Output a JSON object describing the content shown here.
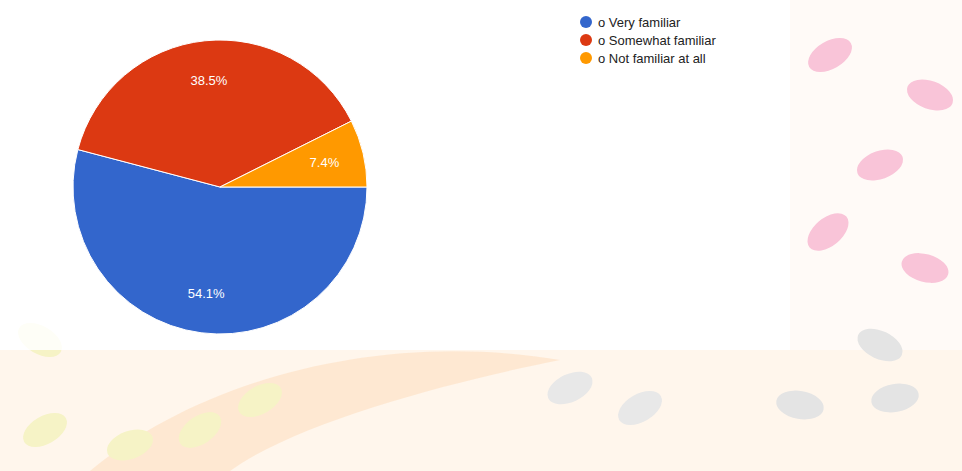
{
  "chart_data": {
    "type": "pie",
    "categories": [
      "o Very familiar",
      "o Somewhat familiar",
      "o Not familiar at all"
    ],
    "values": [
      54.1,
      38.5,
      7.4
    ],
    "value_labels": [
      "54.1%",
      "38.5%",
      "7.4%"
    ],
    "colors": [
      "#3366cc",
      "#dc3912",
      "#ff9900"
    ],
    "data_labels": true,
    "legend": "top-right"
  }
}
